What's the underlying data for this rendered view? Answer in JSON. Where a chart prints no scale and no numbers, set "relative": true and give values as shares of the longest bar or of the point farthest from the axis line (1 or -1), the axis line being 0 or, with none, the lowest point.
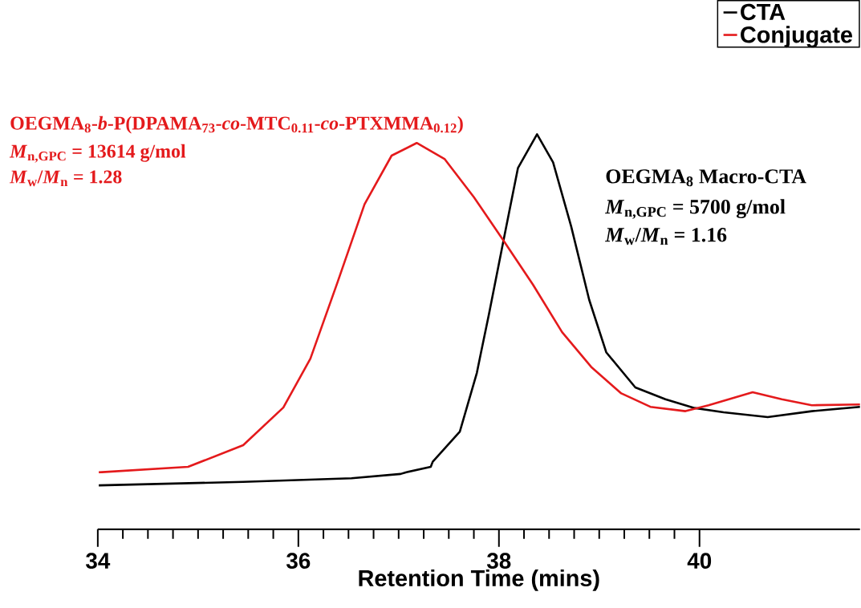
{
  "chart_data": {
    "type": "line",
    "relative": true,
    "xlabel": "Retention Time (mins)",
    "xlim": [
      34,
      41.6
    ],
    "xticks": [
      34,
      36,
      38,
      40
    ],
    "legend": "top right",
    "line_style": "solid",
    "marker": "none",
    "annotations": [
      "OEGMA$_{8}$-*b*-P(DPAMA$_{73}$-*co*-MTC$_{0.11}$-*co*-PTXMMA$_{0.12}$)",
      "*M*$_{n,GPC}$ = 13614 g/mol",
      "*M*$_{w}$/*M*$_{n}$ = 1.28",
      "OEGMA$_{8}$ Macro-CTA",
      "*M*$_{n,GPC}$ = 5700 g/mol",
      "*M*$_{w}$/*M*$_{n}$ = 1.16"
    ],
    "series": [
      {
        "name": "CTA",
        "color": "#000000",
        "x": [
          34.01,
          35.45,
          36.53,
          37.02,
          37.07,
          37.32,
          37.34,
          37.61,
          37.78,
          37.82,
          37.9,
          38.05,
          38.19,
          38.38,
          38.54,
          38.72,
          38.9,
          39.07,
          39.36,
          39.66,
          39.95,
          40.24,
          40.68,
          41.12,
          41.6
        ],
        "values": [
          0.111,
          0.12,
          0.129,
          0.14,
          0.144,
          0.158,
          0.171,
          0.247,
          0.396,
          0.446,
          0.544,
          0.737,
          0.915,
          1.0,
          0.929,
          0.767,
          0.581,
          0.448,
          0.359,
          0.329,
          0.307,
          0.296,
          0.284,
          0.299,
          0.31
        ]
      },
      {
        "name": "Conjugate",
        "color": "#e41a1c",
        "x": [
          34.01,
          34.9,
          35.45,
          35.85,
          36.12,
          36.39,
          36.66,
          36.93,
          37.18,
          37.46,
          37.75,
          38.05,
          38.34,
          38.63,
          38.92,
          39.22,
          39.51,
          39.86,
          40.09,
          40.53,
          40.82,
          41.12,
          41.6
        ],
        "values": [
          0.144,
          0.158,
          0.213,
          0.308,
          0.432,
          0.625,
          0.823,
          0.946,
          0.978,
          0.937,
          0.841,
          0.729,
          0.619,
          0.499,
          0.411,
          0.344,
          0.31,
          0.299,
          0.314,
          0.347,
          0.329,
          0.314,
          0.316
        ]
      }
    ]
  }
}
